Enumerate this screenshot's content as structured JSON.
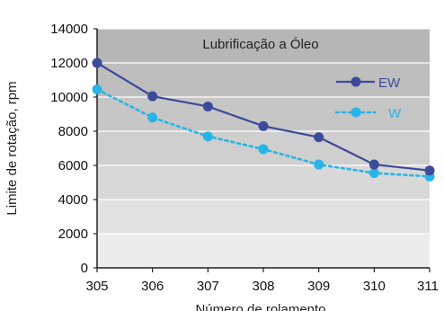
{
  "chart_data": {
    "type": "line",
    "title": "Lubrificação a Óleo",
    "xlabel": "Número de rolamento",
    "ylabel": "Limite de rotação, rpm",
    "categories": [
      "305",
      "306",
      "307",
      "308",
      "309",
      "310",
      "311"
    ],
    "ylim": [
      0,
      14000
    ],
    "yticks": [
      "0",
      "2000",
      "4000",
      "6000",
      "8000",
      "10000",
      "12000",
      "14000"
    ],
    "grid": true,
    "legend_position": "top-right",
    "series": [
      {
        "name": "EW",
        "color": "#3b4a9a",
        "line_style": "solid",
        "values": [
          12000,
          10050,
          9450,
          8300,
          7650,
          6050,
          5700
        ]
      },
      {
        "name": "W",
        "color": "#27b4e6",
        "line_style": "dotted",
        "values": [
          10450,
          8800,
          7700,
          6950,
          6050,
          5550,
          5350
        ]
      }
    ]
  }
}
